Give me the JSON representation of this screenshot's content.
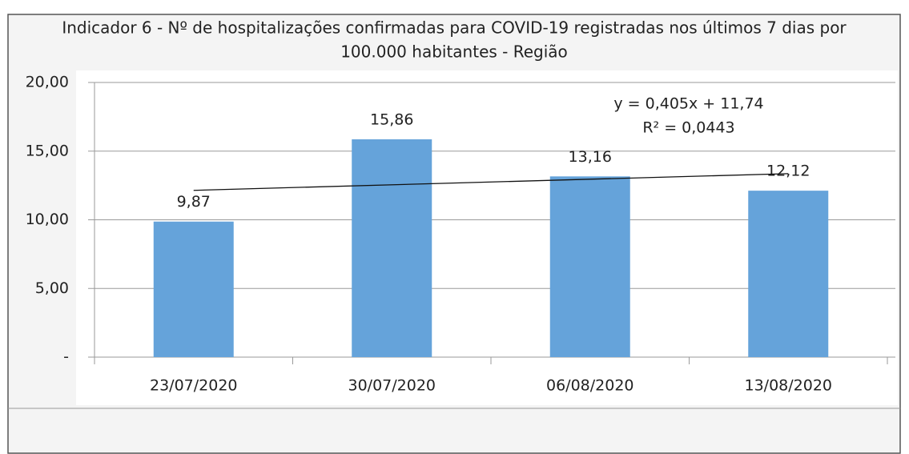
{
  "chart_data": {
    "type": "bar",
    "title": [
      "Indicador 6 - Nº de hospitalizações confirmadas para COVID-19 registradas nos últimos 7 dias por",
      "100.000 habitantes - Região"
    ],
    "categories": [
      "23/07/2020",
      "30/07/2020",
      "06/08/2020",
      "13/08/2020"
    ],
    "values": [
      9.87,
      15.86,
      13.16,
      12.12
    ],
    "value_labels": [
      "9,87",
      "15,86",
      "13,16",
      "12,12"
    ],
    "color": "#65a3da",
    "ylim": [
      0,
      20
    ],
    "yticks": [
      {
        "value": 0,
        "label": "-"
      },
      {
        "value": 5,
        "label": "5,00"
      },
      {
        "value": 10,
        "label": "10,00"
      },
      {
        "value": 15,
        "label": "15,00"
      },
      {
        "value": 20,
        "label": "20,00"
      }
    ],
    "grid": true,
    "trendline": {
      "slope": 0.405,
      "intercept": 11.74,
      "label": "y = 0,405x + 11,74",
      "r2_label": "R² = 0,0443"
    }
  }
}
